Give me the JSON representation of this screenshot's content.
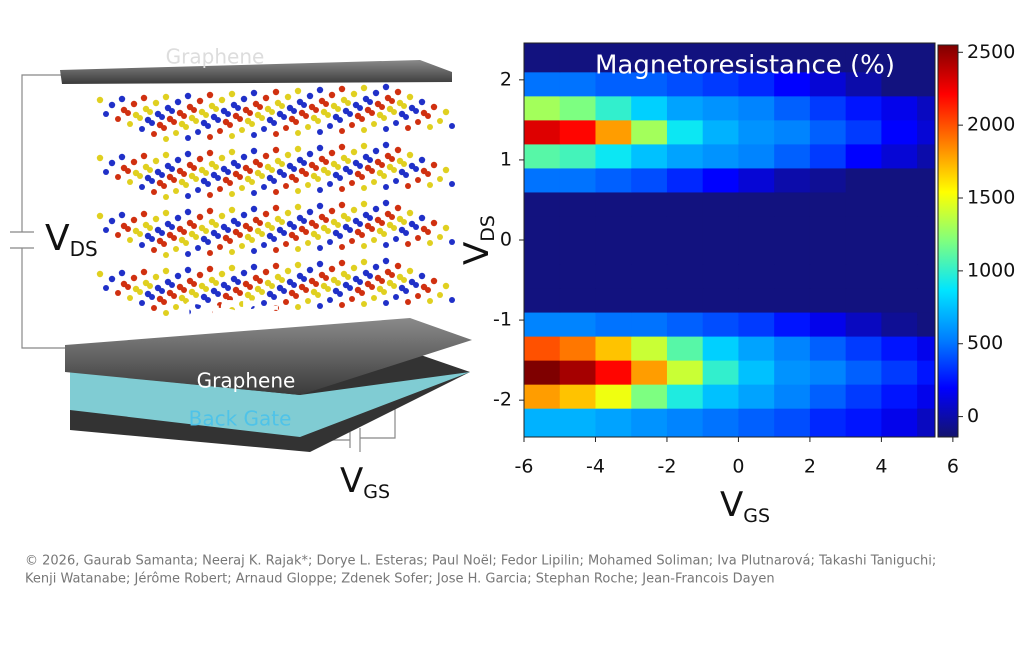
{
  "schematic": {
    "top_layer": "Graphene",
    "crystal": "CrSBr",
    "bottom_layer": "Graphene",
    "gate": "Back Gate",
    "vds": {
      "text": "V",
      "sub": "DS"
    },
    "vgs": {
      "text": "V",
      "sub": "GS"
    }
  },
  "chart_data": {
    "type": "heatmap",
    "title": "Magnetoresistance (%)",
    "x_label": {
      "text": "V",
      "sub": "GS"
    },
    "y_label": {
      "text": "V",
      "sub": "DS"
    },
    "xlim": [
      -6,
      5.5
    ],
    "ylim": [
      -2.46,
      2.46
    ],
    "xticks": [
      -6,
      -4,
      -2,
      0,
      2,
      4,
      6
    ],
    "yticks": [
      -2,
      -1,
      0,
      1,
      2
    ],
    "clim": [
      -140,
      2550
    ],
    "cticks": [
      0,
      500,
      1000,
      1500,
      2000,
      2500
    ],
    "colormap": [
      "#14146e",
      "#0000ff",
      "#007fff",
      "#00e5ff",
      "#7fff7f",
      "#ffff00",
      "#ff7f00",
      "#ff0000",
      "#7f0000"
    ],
    "x_edges": [
      -6,
      -5,
      -4,
      -3,
      -2,
      -1,
      0,
      1,
      2,
      3,
      4,
      5,
      5.5
    ],
    "y_edges": [
      -2.46,
      -2.1,
      -1.8,
      -1.5,
      -1.2,
      -0.9,
      -0.6,
      -0.3,
      0.3,
      0.6,
      0.9,
      1.2,
      1.5,
      1.8,
      2.1,
      2.46
    ],
    "z": [
      [
        700,
        700,
        650,
        600,
        550,
        500,
        450,
        400,
        300,
        250,
        150,
        50
      ],
      [
        1800,
        1700,
        1500,
        1200,
        950,
        750,
        650,
        550,
        450,
        350,
        250,
        150
      ],
      [
        2550,
        2450,
        2200,
        1800,
        1400,
        1000,
        750,
        600,
        550,
        450,
        350,
        250
      ],
      [
        2000,
        1900,
        1700,
        1400,
        1100,
        800,
        650,
        550,
        450,
        350,
        250,
        150
      ],
      [
        550,
        550,
        500,
        500,
        450,
        400,
        350,
        250,
        150,
        50,
        -50,
        -100
      ],
      [
        -100,
        -100,
        -100,
        -100,
        -100,
        -100,
        -100,
        -100,
        -100,
        -100,
        -100,
        -100
      ],
      [
        -100,
        -100,
        -100,
        -100,
        -100,
        -100,
        -100,
        -100,
        -100,
        -100,
        -100,
        -100
      ],
      [
        -100,
        -100,
        -100,
        -100,
        -100,
        -100,
        -100,
        -100,
        -100,
        -100,
        -100,
        -100
      ],
      [
        -100,
        -100,
        -100,
        -100,
        -100,
        -100,
        -100,
        -100,
        -100,
        -100,
        -100,
        -100
      ],
      [
        500,
        500,
        450,
        400,
        300,
        200,
        100,
        0,
        -50,
        -100,
        -100,
        -100
      ],
      [
        1100,
        1050,
        900,
        750,
        650,
        600,
        550,
        450,
        350,
        200,
        100,
        0
      ],
      [
        2300,
        2200,
        1800,
        1300,
        900,
        700,
        600,
        550,
        450,
        350,
        200,
        100
      ],
      [
        1300,
        1200,
        1000,
        800,
        650,
        600,
        550,
        450,
        350,
        250,
        150,
        50
      ],
      [
        500,
        500,
        450,
        450,
        400,
        350,
        300,
        200,
        100,
        0,
        -100,
        -100
      ],
      [
        -100,
        -100,
        -100,
        -100,
        -100,
        -100,
        -100,
        -100,
        -100,
        -100,
        -100,
        -100
      ]
    ]
  },
  "credits": [
    "© 2026,  Gaurab Samanta; Neeraj K. Rajak*; Dorye L. Esteras; Paul Noël; Fedor Lipilin; Mohamed Soliman; Iva Plutnarová; Takashi Taniguchi;",
    "Kenji Watanabe; Jérôme Robert; Arnaud Gloppe; Zdenek Sofer; Jose H. Garcia; Stephan Roche; Jean-Francois Dayen"
  ]
}
